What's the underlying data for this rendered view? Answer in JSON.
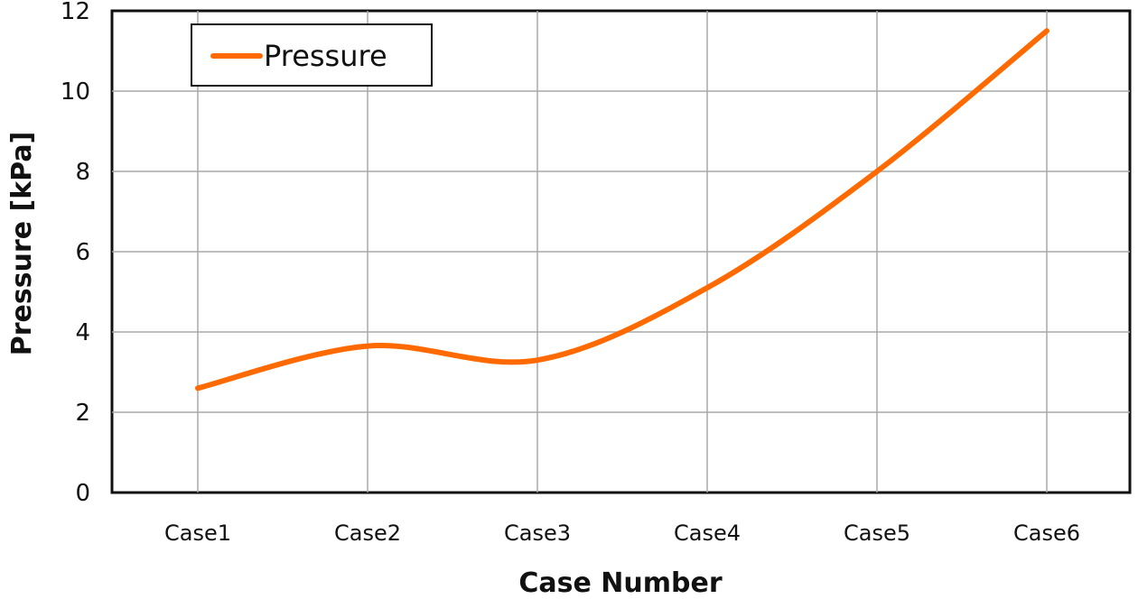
{
  "chart_data": {
    "type": "line",
    "title": "",
    "xlabel": "Case Number",
    "ylabel": "Pressure [kPa]",
    "categories": [
      "Case1",
      "Case2",
      "Case3",
      "Case4",
      "Case5",
      "Case6"
    ],
    "ylim": [
      0,
      12
    ],
    "yticks": [
      "0",
      "2",
      "4",
      "6",
      "8",
      "10",
      "12"
    ],
    "series": [
      {
        "name": "Pressure",
        "color": "#ff6a00",
        "values": [
          2.6,
          3.65,
          3.3,
          5.1,
          8.0,
          11.5
        ]
      }
    ],
    "grid": true,
    "smooth": true,
    "legend": {
      "position": "top-left",
      "entries": [
        "Pressure"
      ]
    }
  }
}
